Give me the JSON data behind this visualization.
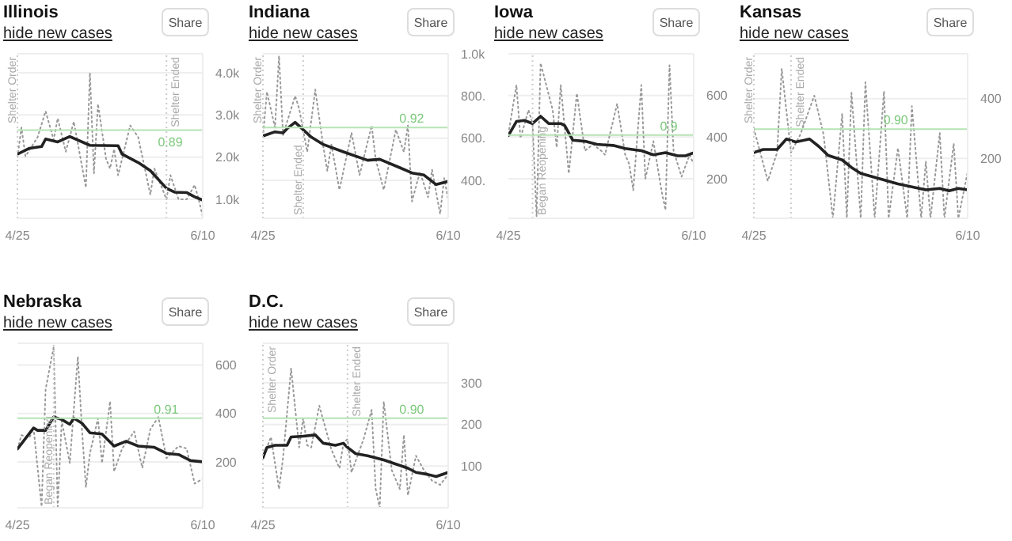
{
  "chart_data": [
    {
      "type": "line",
      "title": "Illinois",
      "annotations": [
        "hide new cases",
        "Share",
        {
          "text": "0.89",
          "x": "--06-05",
          "y": 2640
        }
      ],
      "xlim": [
        "--04-25",
        "--06-10"
      ],
      "xticks": [
        {
          "value": "--04-25",
          "label": "4/25"
        },
        {
          "value": "--06-10",
          "label": "6/10"
        }
      ],
      "ylim": [
        550,
        4450
      ],
      "yticks": [
        {
          "value": 1000,
          "label": "1.0k"
        },
        {
          "value": 2000,
          "label": "2.0k"
        },
        {
          "value": 3000,
          "label": "3.0k"
        },
        {
          "value": 4000,
          "label": "4.0k"
        }
      ],
      "grid": "y",
      "marker": "none",
      "ref_lines": [
        {
          "axis": "x",
          "value": "--04-25",
          "label": "Shelter Order",
          "color": "#cccccc",
          "line_style": "dotted"
        },
        {
          "axis": "x",
          "value": "--06-01",
          "label": "Shelter Ended",
          "color": "#cccccc",
          "line_style": "dotted"
        },
        {
          "axis": "y",
          "value": 2640,
          "color": "#b5e3b5",
          "line_style": "solid"
        }
      ],
      "series": [
        {
          "color": "#999999",
          "line_style": "dotted",
          "x": [
            "--04-25",
            "--04-26",
            "--04-27",
            "--04-30",
            "--05-02",
            "--05-04",
            "--05-05",
            "--05-07",
            "--05-09",
            "--05-12",
            "--05-13",
            "--05-14",
            "--05-15",
            "--05-17",
            "--05-18",
            "--05-19",
            "--05-20",
            "--05-23",
            "--05-25",
            "--05-28",
            "--05-29",
            "--06-01",
            "--06-02",
            "--06-04",
            "--06-06",
            "--06-08",
            "--06-09",
            "--06-10"
          ],
          "values": [
            2000,
            2700,
            2020,
            2470,
            3090,
            2410,
            2920,
            2130,
            2840,
            1280,
            4000,
            1620,
            3260,
            1960,
            1730,
            2190,
            1570,
            2750,
            2470,
            1110,
            1730,
            1000,
            1570,
            1000,
            1000,
            1340,
            1000,
            600
          ]
        },
        {
          "color": "#222222",
          "line_style": "solid",
          "x": [
            "--04-25",
            "--04-28",
            "--05-01",
            "--05-02",
            "--05-05",
            "--05-08",
            "--05-13",
            "--05-20",
            "--05-21",
            "--05-25",
            "--05-28",
            "--06-01",
            "--06-03",
            "--06-06",
            "--06-08",
            "--06-10"
          ],
          "values": [
            2070,
            2210,
            2250,
            2430,
            2360,
            2490,
            2280,
            2270,
            2070,
            1870,
            1680,
            1260,
            1170,
            1160,
            1060,
            980
          ]
        }
      ]
    },
    {
      "type": "line",
      "title": "Indiana",
      "annotations": [
        "hide new cases",
        "Share",
        {
          "text": "0.92",
          "x": "--06-04",
          "y": 650
        }
      ],
      "xlim": [
        "--04-25",
        "--06-10"
      ],
      "xticks": [
        {
          "value": "--04-25",
          "label": "4/25"
        },
        {
          "value": "--06-10",
          "label": "6/10"
        }
      ],
      "ylim": [
        220,
        1000
      ],
      "yticks": [
        {
          "value": 400,
          "label": "400."
        },
        {
          "value": 600,
          "label": "600."
        },
        {
          "value": 800,
          "label": "800."
        },
        {
          "value": 1000,
          "label": "1.0k"
        }
      ],
      "grid": "y",
      "marker": "none",
      "ref_lines": [
        {
          "axis": "x",
          "value": "--04-25",
          "label": "Shelter Order",
          "color": "#cccccc",
          "line_style": "dotted"
        },
        {
          "axis": "x",
          "value": "--05-05",
          "label": "Shelter Ended",
          "color": "#cccccc",
          "line_style": "dotted"
        },
        {
          "axis": "y",
          "value": 650,
          "color": "#b5e3b5",
          "line_style": "solid"
        }
      ],
      "series": [
        {
          "color": "#999999",
          "line_style": "dotted",
          "x": [
            "--04-25",
            "--04-26",
            "--04-28",
            "--04-29",
            "--04-30",
            "--05-03",
            "--05-04",
            "--05-06",
            "--05-08",
            "--05-10",
            "--05-11",
            "--05-12",
            "--05-14",
            "--05-17",
            "--05-19",
            "--05-22",
            "--05-23",
            "--05-25",
            "--05-28",
            "--05-30",
            "--05-31",
            "--06-01",
            "--06-03",
            "--06-05",
            "--06-06",
            "--06-08",
            "--06-09",
            "--06-10"
          ],
          "values": [
            605,
            820,
            650,
            990,
            615,
            800,
            740,
            535,
            830,
            560,
            445,
            570,
            355,
            625,
            425,
            660,
            500,
            355,
            640,
            535,
            660,
            300,
            440,
            320,
            450,
            240,
            410,
            310
          ]
        },
        {
          "color": "#222222",
          "line_style": "solid",
          "x": [
            "--04-25",
            "--04-28",
            "--04-30",
            "--05-01",
            "--05-03",
            "--05-07",
            "--05-10",
            "--05-15",
            "--05-21",
            "--05-24",
            "--05-29",
            "--06-01",
            "--06-04",
            "--06-07",
            "--06-10"
          ],
          "values": [
            610,
            630,
            625,
            645,
            675,
            605,
            570,
            535,
            495,
            500,
            460,
            435,
            425,
            380,
            395
          ]
        }
      ]
    },
    {
      "type": "line",
      "title": "Iowa",
      "annotations": [
        "hide new cases",
        "Share",
        {
          "text": "0.9",
          "x": "--06-06",
          "y": 410
        }
      ],
      "xlim": [
        "--04-25",
        "--06-10"
      ],
      "xticks": [
        {
          "value": "--04-25",
          "label": "4/25"
        },
        {
          "value": "--06-10",
          "label": "6/10"
        }
      ],
      "ylim": [
        10,
        800
      ],
      "yticks": [
        200,
        400,
        600
      ],
      "grid": "y",
      "marker": "none",
      "ref_lines": [
        {
          "axis": "x",
          "value": "--05-01",
          "label": "Began Reopening",
          "color": "#cccccc",
          "line_style": "dotted"
        },
        {
          "axis": "y",
          "value": 410,
          "color": "#b5e3b5",
          "line_style": "solid"
        }
      ],
      "series": [
        {
          "color": "#999999",
          "line_style": "dotted",
          "x": [
            "--04-25",
            "--04-27",
            "--04-28",
            "--04-30",
            "--05-01",
            "--05-02",
            "--05-03",
            "--05-06",
            "--05-07",
            "--05-08",
            "--05-10",
            "--05-12",
            "--05-14",
            "--05-16",
            "--05-18",
            "--05-19",
            "--05-22",
            "--05-24",
            "--05-25",
            "--05-26",
            "--05-28",
            "--05-29",
            "--05-31",
            "--06-02",
            "--06-03",
            "--06-04",
            "--06-05",
            "--06-07",
            "--06-09",
            "--06-10"
          ],
          "values": [
            415,
            650,
            395,
            530,
            465,
            20,
            755,
            530,
            350,
            650,
            225,
            610,
            335,
            365,
            335,
            315,
            560,
            315,
            270,
            145,
            650,
            200,
            380,
            145,
            50,
            745,
            335,
            210,
            315,
            270
          ]
        },
        {
          "color": "#222222",
          "line_style": "solid",
          "x": [
            "--04-25",
            "--04-27",
            "--04-29",
            "--05-01",
            "--05-03",
            "--05-05",
            "--05-08",
            "--05-09",
            "--05-11",
            "--05-14",
            "--05-17",
            "--05-21",
            "--05-24",
            "--05-28",
            "--05-31",
            "--06-03",
            "--06-06",
            "--06-08",
            "--06-10"
          ],
          "values": [
            407,
            475,
            480,
            465,
            500,
            465,
            465,
            455,
            385,
            380,
            365,
            360,
            345,
            335,
            315,
            325,
            310,
            310,
            325
          ]
        }
      ]
    },
    {
      "type": "line",
      "title": "Kansas",
      "annotations": [
        "hide new cases",
        "Share",
        {
          "text": "0.90",
          "x": "--06-04",
          "y": 298
        }
      ],
      "xlim": [
        "--04-25",
        "--06-10"
      ],
      "xticks": [
        {
          "value": "--04-25",
          "label": "4/25"
        },
        {
          "value": "--06-10",
          "label": "6/10"
        }
      ],
      "ylim": [
        0,
        550
      ],
      "yticks": [
        200,
        400
      ],
      "grid": "y",
      "marker": "none",
      "ref_lines": [
        {
          "axis": "x",
          "value": "--04-25",
          "label": "Shelter Order",
          "color": "#cccccc",
          "line_style": "dotted"
        },
        {
          "axis": "x",
          "value": "--05-03",
          "label": "Shelter Ended",
          "color": "#cccccc",
          "line_style": "dotted"
        },
        {
          "axis": "y",
          "value": 298,
          "color": "#b5e3b5",
          "line_style": "solid"
        }
      ],
      "series": [
        {
          "color": "#999999",
          "line_style": "dotted",
          "x": [
            "--04-25",
            "--04-28",
            "--04-30",
            "--05-01",
            "--05-03",
            "--05-05",
            "--05-08",
            "--05-10",
            "--05-12",
            "--05-14",
            "--05-15",
            "--05-16",
            "--05-18",
            "--05-19",
            "--05-21",
            "--05-23",
            "--05-24",
            "--05-26",
            "--05-28",
            "--05-29",
            "--05-31",
            "--06-01",
            "--06-02",
            "--06-04",
            "--06-05",
            "--06-07",
            "--06-08",
            "--06-10"
          ],
          "values": [
            300,
            125,
            220,
            500,
            220,
            280,
            410,
            280,
            0,
            350,
            0,
            420,
            0,
            455,
            0,
            425,
            0,
            235,
            0,
            375,
            0,
            190,
            0,
            285,
            0,
            250,
            0,
            155
          ]
        },
        {
          "color": "#222222",
          "line_style": "solid",
          "x": [
            "--04-25",
            "--04-27",
            "--04-30",
            "--05-02",
            "--05-04",
            "--05-07",
            "--05-09",
            "--05-11",
            "--05-14",
            "--05-16",
            "--05-18",
            "--05-21",
            "--05-23",
            "--05-26",
            "--05-29",
            "--06-01",
            "--06-04",
            "--06-06",
            "--06-08",
            "--06-10"
          ],
          "values": [
            220,
            230,
            230,
            265,
            255,
            265,
            240,
            210,
            195,
            170,
            150,
            137,
            128,
            115,
            105,
            95,
            100,
            92,
            100,
            95
          ]
        }
      ]
    },
    {
      "type": "line",
      "title": "Nebraska",
      "annotations": [
        "hide new cases",
        "Share",
        {
          "text": "0.91",
          "x": "--06-04",
          "y": 380
        }
      ],
      "xlim": [
        "--04-25",
        "--06-10"
      ],
      "xticks": [
        {
          "value": "--04-25",
          "label": "4/25"
        },
        {
          "value": "--06-10",
          "label": "6/10"
        }
      ],
      "ylim": [
        10,
        690
      ],
      "yticks": [
        200,
        400,
        600
      ],
      "grid": "y",
      "marker": "none",
      "ref_lines": [
        {
          "axis": "x",
          "value": "--05-04",
          "label": "Began Reopening",
          "color": "#cccccc",
          "line_style": "dotted"
        },
        {
          "axis": "y",
          "value": 380,
          "color": "#b5e3b5",
          "line_style": "solid"
        }
      ],
      "series": [
        {
          "color": "#999999",
          "line_style": "dotted",
          "x": [
            "--04-25",
            "--04-26",
            "--04-28",
            "--04-29",
            "--05-01",
            "--05-02",
            "--05-04",
            "--05-05",
            "--05-06",
            "--05-08",
            "--05-10",
            "--05-11",
            "--05-12",
            "--05-13",
            "--05-15",
            "--05-16",
            "--05-18",
            "--05-19",
            "--05-21",
            "--05-24",
            "--05-26",
            "--05-28",
            "--05-30",
            "--06-01",
            "--06-04",
            "--06-06",
            "--06-08",
            "--06-10"
          ],
          "values": [
            253,
            310,
            300,
            340,
            15,
            500,
            675,
            15,
            370,
            195,
            635,
            340,
            95,
            235,
            380,
            195,
            450,
            160,
            255,
            325,
            175,
            335,
            385,
            215,
            265,
            255,
            110,
            130
          ]
        },
        {
          "color": "#222222",
          "line_style": "solid",
          "x": [
            "--04-25",
            "--04-29",
            "--04-30",
            "--05-02",
            "--05-04",
            "--05-06",
            "--05-08",
            "--05-09",
            "--05-11",
            "--05-13",
            "--05-16",
            "--05-19",
            "--05-22",
            "--05-25",
            "--05-29",
            "--06-01",
            "--06-04",
            "--06-07",
            "--06-10"
          ],
          "values": [
            253,
            340,
            330,
            330,
            385,
            375,
            355,
            380,
            360,
            320,
            315,
            265,
            285,
            265,
            260,
            235,
            230,
            205,
            200
          ]
        }
      ]
    },
    {
      "type": "line",
      "title": "D.C.",
      "annotations": [
        "hide new cases",
        "Share",
        {
          "text": "0.90",
          "x": "--06-04",
          "y": 215
        }
      ],
      "xlim": [
        "--04-25",
        "--06-10"
      ],
      "xticks": [
        {
          "value": "--04-25",
          "label": "4/25"
        },
        {
          "value": "--06-10",
          "label": "6/10"
        }
      ],
      "ylim": [
        0,
        395
      ],
      "yticks": [
        100,
        200,
        300
      ],
      "grid": "y",
      "marker": "none",
      "ref_lines": [
        {
          "axis": "x",
          "value": "--04-25",
          "label": "Shelter Order",
          "color": "#cccccc",
          "line_style": "dotted"
        },
        {
          "axis": "x",
          "value": "--05-16",
          "label": "Shelter Ended",
          "color": "#cccccc",
          "line_style": "dotted"
        },
        {
          "axis": "y",
          "value": 215,
          "color": "#b5e3b5",
          "line_style": "solid"
        }
      ],
      "series": [
        {
          "color": "#999999",
          "line_style": "dotted",
          "x": [
            "--04-25",
            "--04-27",
            "--04-29",
            "--04-30",
            "--05-02",
            "--05-04",
            "--05-05",
            "--05-06",
            "--05-07",
            "--05-09",
            "--05-12",
            "--05-14",
            "--05-15",
            "--05-16",
            "--05-17",
            "--05-20",
            "--05-22",
            "--05-23",
            "--05-24",
            "--05-25",
            "--05-27",
            "--05-29",
            "--05-30",
            "--05-31",
            "--06-02",
            "--06-04",
            "--06-06",
            "--06-08",
            "--06-10"
          ],
          "values": [
            120,
            170,
            45,
            120,
            335,
            145,
            215,
            150,
            145,
            245,
            140,
            95,
            155,
            165,
            85,
            165,
            235,
            45,
            0,
            255,
            90,
            45,
            175,
            30,
            125,
            90,
            65,
            55,
            80
          ]
        },
        {
          "color": "#222222",
          "line_style": "solid",
          "x": [
            "--04-25",
            "--04-26",
            "--04-28",
            "--05-01",
            "--05-02",
            "--05-05",
            "--05-08",
            "--05-10",
            "--05-13",
            "--05-15",
            "--05-16",
            "--05-18",
            "--05-21",
            "--05-25",
            "--05-28",
            "--05-31",
            "--06-02",
            "--06-05",
            "--06-07",
            "--06-10"
          ],
          "values": [
            120,
            145,
            150,
            150,
            170,
            172,
            175,
            155,
            150,
            155,
            145,
            130,
            125,
            115,
            105,
            95,
            85,
            80,
            75,
            85
          ]
        }
      ]
    }
  ]
}
